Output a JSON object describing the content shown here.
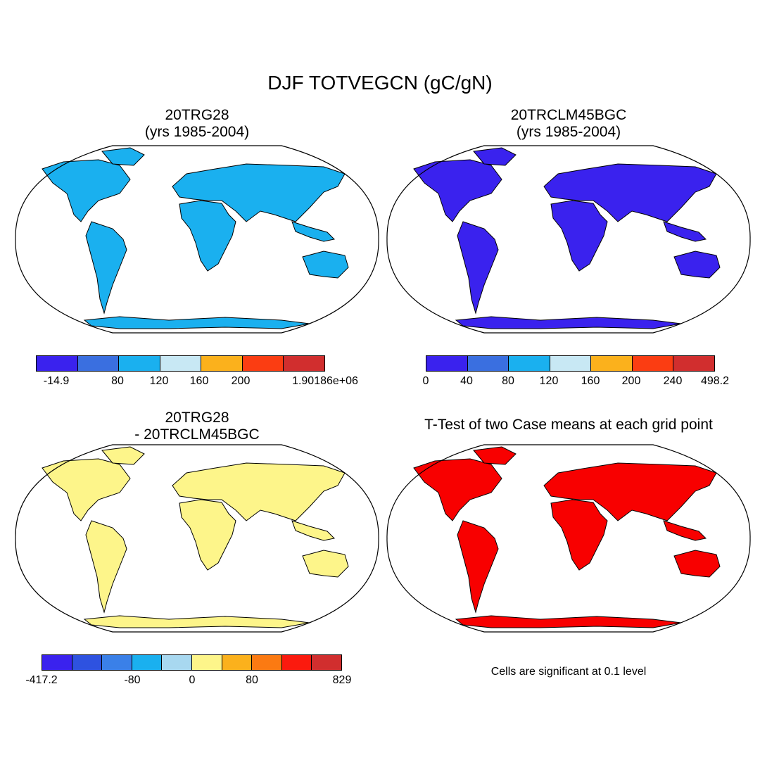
{
  "title": "DJF TOTVEGCN (gC/gN)",
  "panels": {
    "p1": {
      "title_line1": "20TRG28",
      "title_line2": "(yrs 1985-2004)"
    },
    "p2": {
      "title_line1": "20TRCLM45BGC",
      "title_line2": "(yrs 1985-2004)"
    },
    "p3": {
      "title_line1": "20TRG28",
      "title_line2": "- 20TRCLM45BGC"
    },
    "p4": {
      "title_line1": "T-Test of two Case means at each grid point"
    }
  },
  "colorbars": {
    "cb1": {
      "colors": [
        "#3a22ee",
        "#3a6fe0",
        "#1ab0ef",
        "#c8e8f4",
        "#fbb11c",
        "#fb3d12",
        "#d12e2e"
      ],
      "labels": [
        "-14.9",
        "80",
        "120",
        "160",
        "200",
        "1.90186e+06"
      ]
    },
    "cb2": {
      "colors": [
        "#3a22ee",
        "#3a6fe0",
        "#1ab0ef",
        "#c8e8f4",
        "#fbb11c",
        "#fb3d12",
        "#d12e2e"
      ],
      "labels": [
        "0",
        "40",
        "80",
        "120",
        "160",
        "200",
        "240",
        "498.2"
      ]
    },
    "cb3": {
      "colors": [
        "#3a22ee",
        "#2e52e0",
        "#3a80e8",
        "#1ab0ef",
        "#a8d8f0",
        "#fdf58a",
        "#fbb11c",
        "#fb7a12",
        "#fb1a0e",
        "#d12e2e"
      ],
      "labels": [
        "-417.2",
        "-80",
        "0",
        "80",
        "829"
      ]
    }
  },
  "significance_note": "Cells are significant at 0.1 level",
  "map_fills": {
    "p1": "#1ab0ef",
    "p2": "#3a22ee",
    "p3": "#fdf58a",
    "p4": "#f80000"
  }
}
